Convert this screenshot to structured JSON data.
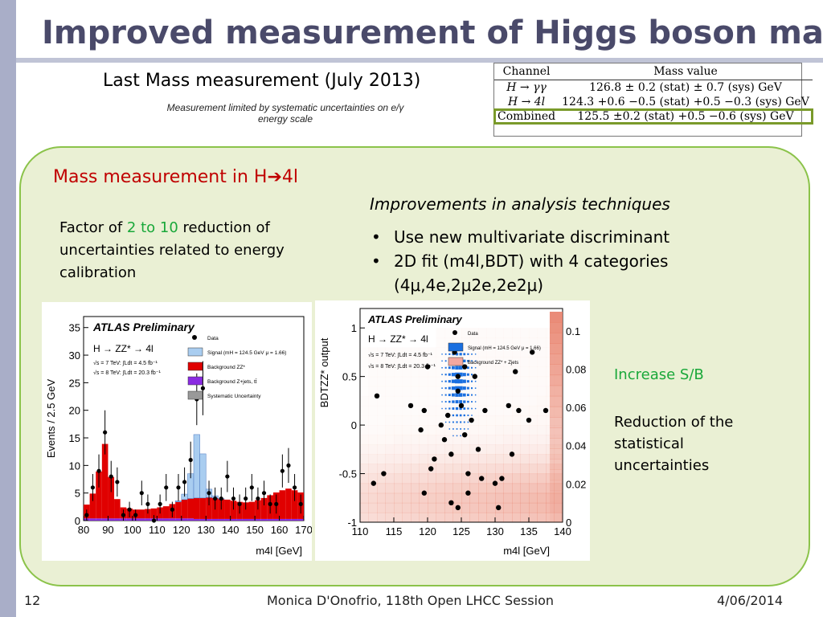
{
  "slide": {
    "title": "Improved measurement of Higgs boson mass",
    "subtitle": "Last Mass measurement (July 2013)",
    "note": "Measurement limited by systematic uncertainties on e/γ energy scale",
    "table": {
      "headers": [
        "Channel",
        "Mass value"
      ],
      "rows": [
        {
          "channel": "H → γγ",
          "value": "126.8 ± 0.2 (stat) ± 0.7 (sys) GeV"
        },
        {
          "channel": "H → 4l",
          "value": "124.3 +0.6 −0.5 (stat) +0.5 −0.3 (sys) GeV"
        },
        {
          "channel": "Combined",
          "value": "125.5 ±0.2 (stat) +0.5 −0.6 (sys) GeV"
        }
      ]
    },
    "panel": {
      "heading": "Mass measurement in H",
      "heading_arrow": "➔",
      "heading_end": "4l",
      "improvements_title": "Improvements in analysis techniques",
      "factor": {
        "pre": "Factor of ",
        "highlight": "2 to 10",
        "post": " reduction of uncertainties related to energy calibration"
      },
      "bullets": [
        "Use new multivariate discriminant",
        "2D fit (m4l,BDT) with 4 categories (4μ,4e,2μ2e,2e2μ)"
      ],
      "increase": "Increase S/B",
      "reduction": "Reduction of the statistical uncertainties"
    },
    "footer": {
      "page": "12",
      "author": "Monica D'Onofrio, 118th Open LHCC Session",
      "date": "4/06/2014"
    }
  },
  "colors": {
    "title": "#4a4a6a",
    "accent_red": "#c00000",
    "accent_green": "#1aa83a",
    "panel_bg": "#eaf0d4",
    "panel_border": "#8bc34a",
    "signal": "#a9cdf0",
    "background_zz": "#e00000",
    "background_zjets": "#8a2be2"
  },
  "chart_data": [
    {
      "type": "bar",
      "title": "ATLAS Preliminary",
      "process": "H → ZZ* → 4l",
      "lumi": [
        "√s = 7 TeV: ∫Ldt = 4.5 fb⁻¹",
        "√s = 8 TeV: ∫Ldt = 20.3 fb⁻¹"
      ],
      "legend": [
        "Data",
        "Signal (mH = 124.5 GeV μ = 1.66)",
        "Background ZZ*",
        "Background Z+jets, tt̄",
        "Systematic Uncertainty"
      ],
      "xlabel": "m4l [GeV]",
      "ylabel": "Events / 2.5 GeV",
      "xlim": [
        80,
        170
      ],
      "ylim": [
        0,
        37
      ],
      "xticks": [
        80,
        90,
        100,
        110,
        120,
        130,
        140,
        150,
        160,
        170
      ],
      "yticks": [
        0,
        5,
        10,
        15,
        20,
        25,
        30,
        35
      ],
      "bin_width": 2.5,
      "zjets": [
        0.4,
        0.4,
        0.4,
        0.4,
        0.4,
        0.4,
        0.4,
        0.4,
        0.4,
        0.4,
        0.4,
        0.4,
        0.4,
        0.4,
        0.4,
        0.4,
        0.4,
        0.4,
        0.3,
        0.3,
        0.3,
        0.3,
        0.3,
        0.3,
        0.3,
        0.3,
        0.3,
        0.3,
        0.3,
        0.3,
        0.3,
        0.3,
        0.3,
        0.3,
        0.3,
        0.3
      ],
      "zz": [
        2.5,
        4.5,
        8.5,
        13.5,
        7.5,
        3.5,
        2.0,
        1.8,
        1.6,
        1.6,
        1.7,
        1.8,
        2.0,
        2.2,
        2.6,
        3.0,
        3.4,
        3.6,
        3.8,
        3.8,
        3.9,
        3.8,
        3.6,
        3.5,
        3.3,
        3.1,
        3.0,
        3.1,
        3.4,
        3.8,
        4.3,
        4.8,
        5.2,
        5.5,
        5.2,
        4.8
      ],
      "signal": [
        0,
        0,
        0,
        0,
        0,
        0,
        0,
        0,
        0,
        0,
        0,
        0,
        0,
        0,
        0,
        0.2,
        1.0,
        4.5,
        11.5,
        8.0,
        1.5,
        0.4,
        0.1,
        0,
        0,
        0,
        0,
        0,
        0,
        0,
        0,
        0,
        0,
        0,
        0,
        0
      ],
      "data": [
        1,
        6,
        9,
        16,
        8,
        7,
        1,
        2,
        1,
        5,
        3,
        0,
        3,
        6,
        2,
        6,
        7,
        11,
        22,
        24,
        5,
        4,
        4,
        8,
        4,
        3,
        4,
        6,
        4,
        5,
        3,
        3,
        9,
        10,
        6,
        3
      ]
    },
    {
      "type": "heatmap",
      "title": "ATLAS Preliminary",
      "process": "H → ZZ* → 4l",
      "lumi": [
        "√s = 7 TeV: ∫Ldt = 4.5 fb⁻¹",
        "√s = 8 TeV: ∫Ldt = 20.3 fb⁻¹"
      ],
      "legend": [
        "Data",
        "Signal (mH = 124.5 GeV μ = 1.66)",
        "Background ZZ* + Zjets"
      ],
      "xlabel": "m4l [GeV]",
      "ylabel": "BDTZZ* output",
      "xlim": [
        110,
        140
      ],
      "ylim": [
        -1,
        1.2
      ],
      "xticks": [
        110,
        115,
        120,
        125,
        130,
        135,
        140
      ],
      "yticks": [
        -1,
        -0.5,
        0,
        0.5,
        1
      ],
      "colorbar_ticks": [
        0,
        0.02,
        0.04,
        0.06,
        0.08,
        0.1
      ],
      "data_points": [
        [
          112.5,
          0.3
        ],
        [
          112,
          -0.6
        ],
        [
          113.5,
          -0.5
        ],
        [
          117.5,
          0.2
        ],
        [
          119.5,
          0.15
        ],
        [
          120,
          0.6
        ],
        [
          119,
          -0.05
        ],
        [
          121,
          -0.35
        ],
        [
          120.5,
          -0.45
        ],
        [
          119.5,
          -0.7
        ],
        [
          122,
          0.0
        ],
        [
          123,
          0.1
        ],
        [
          122.5,
          -0.15
        ],
        [
          123.5,
          -0.3
        ],
        [
          124,
          0.75
        ],
        [
          124.5,
          0.5
        ],
        [
          124.5,
          0.35
        ],
        [
          125.5,
          0.6
        ],
        [
          125,
          0.2
        ],
        [
          125.5,
          -0.1
        ],
        [
          126,
          -0.5
        ],
        [
          126.5,
          0.05
        ],
        [
          127,
          0.5
        ],
        [
          127.5,
          -0.25
        ],
        [
          126,
          -0.7
        ],
        [
          128,
          -0.55
        ],
        [
          128.5,
          0.15
        ],
        [
          130,
          -0.6
        ],
        [
          130.5,
          -0.85
        ],
        [
          131,
          -0.55
        ],
        [
          132,
          0.2
        ],
        [
          132.5,
          -0.3
        ],
        [
          133.5,
          0.15
        ],
        [
          133,
          0.55
        ],
        [
          135,
          0.05
        ],
        [
          135.5,
          0.75
        ],
        [
          137.5,
          0.15
        ],
        [
          123.5,
          -0.8
        ],
        [
          124.5,
          -0.85
        ]
      ]
    }
  ]
}
